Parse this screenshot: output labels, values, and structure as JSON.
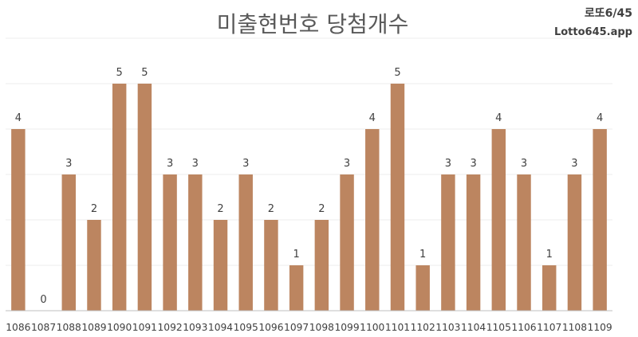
{
  "brand": {
    "line1": "로또6/45",
    "line2": "Lotto645.app"
  },
  "chart_data": {
    "type": "bar",
    "title": "미출현번호 당첨개수",
    "xlabel": "",
    "ylabel": "",
    "ylim": [
      0,
      6
    ],
    "grid": true,
    "bar_color": "#bc8560",
    "categories": [
      "1086",
      "1087",
      "1088",
      "1089",
      "1090",
      "1091",
      "1092",
      "1093",
      "1094",
      "1095",
      "1096",
      "1097",
      "1098",
      "1099",
      "1100",
      "1101",
      "1102",
      "1103",
      "1104",
      "1105",
      "1106",
      "1107",
      "1108",
      "1109"
    ],
    "values": [
      4,
      0,
      3,
      2,
      5,
      5,
      3,
      3,
      2,
      3,
      2,
      1,
      2,
      3,
      4,
      5,
      1,
      3,
      3,
      4,
      3,
      1,
      3,
      4
    ],
    "data_labels": true
  }
}
